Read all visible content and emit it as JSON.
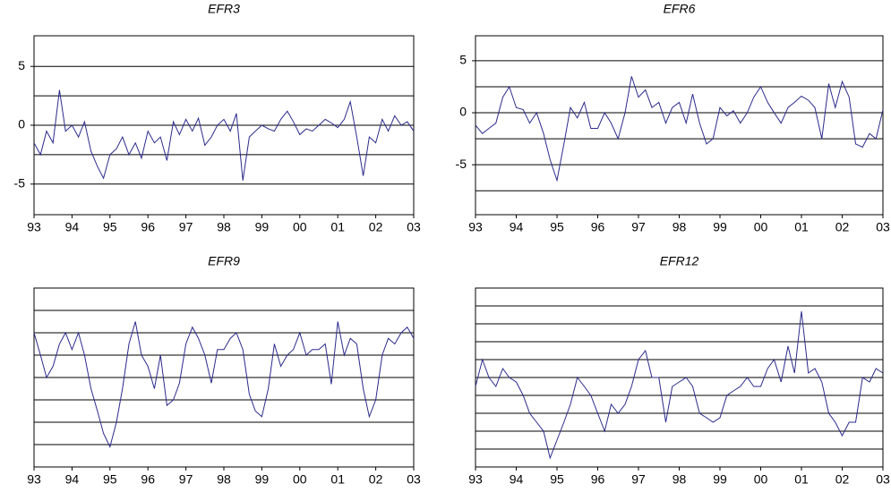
{
  "chart_data": [
    {
      "type": "line",
      "title": "EFR3",
      "color": "#2b2b8c",
      "x": [
        1993,
        1993.17,
        1993.33,
        1993.5,
        1993.67,
        1993.83,
        1994,
        1994.17,
        1994.33,
        1994.5,
        1994.67,
        1994.83,
        1995,
        1995.17,
        1995.33,
        1995.5,
        1995.67,
        1995.83,
        1996,
        1996.17,
        1996.33,
        1996.5,
        1996.67,
        1996.83,
        1997,
        1997.17,
        1997.33,
        1997.5,
        1997.67,
        1997.83,
        1998,
        1998.17,
        1998.33,
        1998.5,
        1998.67,
        1998.83,
        1999,
        1999.17,
        1999.33,
        1999.5,
        1999.67,
        1999.83,
        2000,
        2000.17,
        2000.33,
        2000.5,
        2000.67,
        2000.83,
        2001,
        2001.17,
        2001.33,
        2001.5,
        2001.67,
        2001.83,
        2002,
        2002.17,
        2002.33,
        2002.5,
        2002.67,
        2002.83,
        2003
      ],
      "values": [
        -1.5,
        -2.5,
        -0.5,
        -1.5,
        3,
        -0.5,
        0,
        -1,
        0.3,
        -2.2,
        -3.5,
        -4.5,
        -2.5,
        -2,
        -1,
        -2.5,
        -1.5,
        -2.8,
        -0.5,
        -1.5,
        -1,
        -3,
        0.3,
        -0.8,
        0.5,
        -0.5,
        0.6,
        -1.7,
        -1,
        0,
        0.5,
        -0.5,
        1,
        -4.7,
        -1,
        -0.5,
        0,
        -0.3,
        -0.5,
        0.5,
        1.2,
        0.3,
        -0.8,
        -0.3,
        -0.5,
        0,
        0.5,
        0.2,
        -0.2,
        0.5,
        2,
        -1,
        -4.3,
        -1,
        -1.5,
        0.5,
        -0.5,
        0.8,
        0,
        0.3,
        -0.5
      ],
      "xlim": [
        1993,
        2003
      ],
      "xticks": [
        {
          "value": 1993,
          "label": "93"
        },
        {
          "value": 1994,
          "label": "94"
        },
        {
          "value": 1995,
          "label": "95"
        },
        {
          "value": 1996,
          "label": "96"
        },
        {
          "value": 1997,
          "label": "97"
        },
        {
          "value": 1998,
          "label": "98"
        },
        {
          "value": 1999,
          "label": "99"
        },
        {
          "value": 2000,
          "label": "00"
        },
        {
          "value": 2001,
          "label": "01"
        },
        {
          "value": 2002,
          "label": "02"
        },
        {
          "value": 2003,
          "label": "03"
        }
      ],
      "ylim": [
        -7.6,
        7.6
      ],
      "yticks": [
        -5,
        0,
        5
      ],
      "ygrid": [
        -5,
        -2.5,
        0,
        2.5,
        5
      ]
    },
    {
      "type": "line",
      "title": "EFR6",
      "color": "#2b2b8c",
      "x": [
        1993,
        1993.17,
        1993.33,
        1993.5,
        1993.67,
        1993.83,
        1994,
        1994.17,
        1994.33,
        1994.5,
        1994.67,
        1994.83,
        1995,
        1995.17,
        1995.33,
        1995.5,
        1995.67,
        1995.83,
        1996,
        1996.17,
        1996.33,
        1996.5,
        1996.67,
        1996.83,
        1997,
        1997.17,
        1997.33,
        1997.5,
        1997.67,
        1997.83,
        1998,
        1998.17,
        1998.33,
        1998.5,
        1998.67,
        1998.83,
        1999,
        1999.17,
        1999.33,
        1999.5,
        1999.67,
        1999.83,
        2000,
        2000.17,
        2000.33,
        2000.5,
        2000.67,
        2000.83,
        2001,
        2001.17,
        2001.33,
        2001.5,
        2001.67,
        2001.83,
        2002,
        2002.17,
        2002.33,
        2002.5,
        2002.67,
        2002.83,
        2003
      ],
      "values": [
        -1.2,
        -2,
        -1.5,
        -1,
        1.5,
        2.5,
        0.5,
        0.3,
        -1,
        0,
        -2,
        -4.5,
        -6.5,
        -3,
        0.5,
        -0.5,
        1,
        -1.5,
        -1.5,
        0,
        -1,
        -2.5,
        0,
        3.5,
        1.5,
        2.2,
        0.5,
        1,
        -1,
        0.5,
        1,
        -1,
        1.8,
        -1,
        -3,
        -2.5,
        0.5,
        -0.3,
        0.2,
        -1,
        0,
        1.5,
        2.5,
        1,
        0,
        -1,
        0.5,
        1,
        1.6,
        1.2,
        0.5,
        -2.5,
        2.8,
        0.5,
        3,
        1.5,
        -3,
        -3.3,
        -2,
        -2.5,
        0.3
      ],
      "xlim": [
        1993,
        2003
      ],
      "xticks": [
        {
          "value": 1993,
          "label": "93"
        },
        {
          "value": 1994,
          "label": "94"
        },
        {
          "value": 1995,
          "label": "95"
        },
        {
          "value": 1996,
          "label": "96"
        },
        {
          "value": 1997,
          "label": "97"
        },
        {
          "value": 1998,
          "label": "98"
        },
        {
          "value": 1999,
          "label": "99"
        },
        {
          "value": 2000,
          "label": "00"
        },
        {
          "value": 2001,
          "label": "01"
        },
        {
          "value": 2002,
          "label": "02"
        },
        {
          "value": 2003,
          "label": "03"
        }
      ],
      "ylim": [
        -9.8,
        7.4
      ],
      "yticks": [
        -5,
        0,
        5
      ],
      "ygrid": [
        -7.5,
        -5,
        -2.5,
        0,
        2.5,
        5
      ]
    },
    {
      "type": "line",
      "title": "EFR9",
      "color": "#2b2b8c",
      "x": [
        1993,
        1993.17,
        1993.33,
        1993.5,
        1993.67,
        1993.83,
        1994,
        1994.17,
        1994.33,
        1994.5,
        1994.67,
        1994.83,
        1995,
        1995.17,
        1995.33,
        1995.5,
        1995.67,
        1995.83,
        1996,
        1996.17,
        1996.33,
        1996.5,
        1996.67,
        1996.83,
        1997,
        1997.17,
        1997.33,
        1997.5,
        1997.67,
        1997.83,
        1998,
        1998.17,
        1998.33,
        1998.5,
        1998.67,
        1998.83,
        1999,
        1999.17,
        1999.33,
        1999.5,
        1999.67,
        1999.83,
        2000,
        2000.17,
        2000.33,
        2000.5,
        2000.67,
        2000.83,
        2001,
        2001.17,
        2001.33,
        2001.5,
        2001.67,
        2001.83,
        2002,
        2002.17,
        2002.33,
        2002.5,
        2002.67,
        2002.83,
        2003
      ],
      "values": [
        4,
        2,
        0,
        1,
        3,
        4,
        2.5,
        4,
        2,
        -1,
        -3,
        -5,
        -6.2,
        -4,
        -1,
        3,
        5,
        2,
        1,
        -1,
        2,
        -2.5,
        -2,
        -0.5,
        3,
        4.5,
        3.5,
        2,
        -0.5,
        2.5,
        2.5,
        3.5,
        4,
        2.5,
        -1.5,
        -3,
        -3.5,
        -1,
        3,
        1,
        2,
        2.5,
        4,
        2,
        2.5,
        2.5,
        3,
        -0.6,
        5,
        2,
        3.5,
        3,
        -1,
        -3.5,
        -2,
        2,
        3.5,
        3,
        4,
        4.5,
        3.5
      ],
      "xlim": [
        1993,
        2003
      ],
      "xticks": [
        {
          "value": 1993,
          "label": "93"
        },
        {
          "value": 1994,
          "label": "94"
        },
        {
          "value": 1995,
          "label": "95"
        },
        {
          "value": 1996,
          "label": "96"
        },
        {
          "value": 1997,
          "label": "97"
        },
        {
          "value": 1998,
          "label": "98"
        },
        {
          "value": 1999,
          "label": "99"
        },
        {
          "value": 2000,
          "label": "00"
        },
        {
          "value": 2001,
          "label": "01"
        },
        {
          "value": 2002,
          "label": "02"
        },
        {
          "value": 2003,
          "label": "03"
        }
      ],
      "ylim": [
        -8,
        8
      ],
      "ygrid": [
        -6,
        -4,
        -2,
        0,
        2,
        4,
        6
      ]
    },
    {
      "type": "line",
      "title": "EFR12",
      "color": "#2b2b8c",
      "x": [
        1993,
        1993.17,
        1993.33,
        1993.5,
        1993.67,
        1993.83,
        1994,
        1994.17,
        1994.33,
        1994.5,
        1994.67,
        1994.83,
        1995,
        1995.17,
        1995.33,
        1995.5,
        1995.67,
        1995.83,
        1996,
        1996.17,
        1996.33,
        1996.5,
        1996.67,
        1996.83,
        1997,
        1997.17,
        1997.33,
        1997.5,
        1997.67,
        1997.83,
        1998,
        1998.17,
        1998.33,
        1998.5,
        1998.67,
        1998.83,
        1999,
        1999.17,
        1999.33,
        1999.5,
        1999.67,
        1999.83,
        2000,
        2000.17,
        2000.33,
        2000.5,
        2000.67,
        2000.83,
        2001,
        2001.17,
        2001.33,
        2001.5,
        2001.67,
        2001.83,
        2002,
        2002.17,
        2002.33,
        2002.5,
        2002.67,
        2002.83,
        2003
      ],
      "values": [
        -1,
        2,
        0,
        -1,
        1,
        0,
        -0.5,
        -2,
        -4,
        -5,
        -6,
        -9,
        -7,
        -5,
        -3,
        0,
        -1,
        -2,
        -4,
        -6,
        -3,
        -4,
        -3,
        -1,
        2,
        3,
        0,
        0,
        -5,
        -1,
        -0.5,
        0,
        -1,
        -4,
        -4.5,
        -5,
        -4.5,
        -2,
        -1.5,
        -1,
        0,
        -1,
        -1,
        1,
        2,
        -0.5,
        3.5,
        0.5,
        7.4,
        0.5,
        1,
        -0.5,
        -4,
        -5,
        -6.5,
        -5,
        -5,
        0,
        -0.5,
        1,
        0.5
      ],
      "xlim": [
        1993,
        2003
      ],
      "xticks": [
        {
          "value": 1993,
          "label": "93"
        },
        {
          "value": 1994,
          "label": "94"
        },
        {
          "value": 1995,
          "label": "95"
        },
        {
          "value": 1996,
          "label": "96"
        },
        {
          "value": 1997,
          "label": "97"
        },
        {
          "value": 1998,
          "label": "98"
        },
        {
          "value": 1999,
          "label": "99"
        },
        {
          "value": 2000,
          "label": "00"
        },
        {
          "value": 2001,
          "label": "01"
        },
        {
          "value": 2002,
          "label": "02"
        },
        {
          "value": 2003,
          "label": "03"
        }
      ],
      "ylim": [
        -10,
        10
      ],
      "ygrid": [
        -8,
        -6,
        -4,
        -2,
        0,
        2,
        4,
        6,
        8
      ]
    }
  ]
}
